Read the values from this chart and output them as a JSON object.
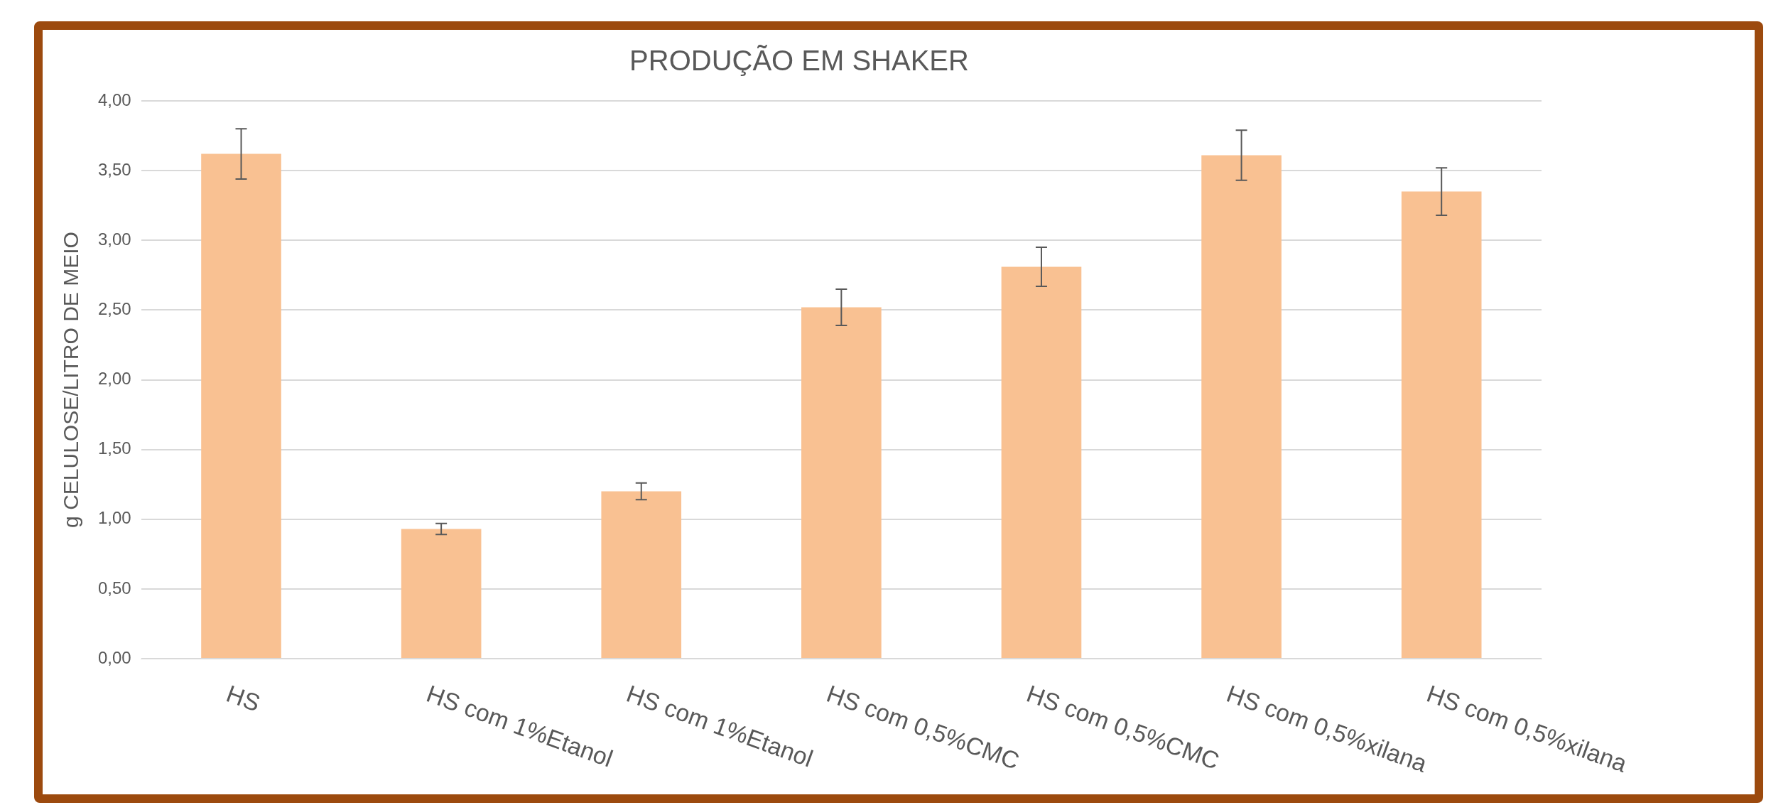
{
  "chart_data": {
    "type": "bar",
    "title": "PRODUÇÃO EM SHAKER",
    "ylabel": "g CELULOSE/LITRO DE MEIO",
    "categories": [
      "HS",
      "HS com 1%Etanol",
      "HS com 1%Etanol",
      "HS com 0,5%CMC",
      "HS com 0,5%CMC",
      "HS com 0,5%xilana",
      "HS com 0,5%xilana"
    ],
    "values": [
      3.62,
      0.93,
      1.2,
      2.52,
      2.81,
      3.61,
      3.35
    ],
    "errors": [
      0.18,
      0.04,
      0.06,
      0.13,
      0.14,
      0.18,
      0.17
    ],
    "color": "#f9c192",
    "ylim": [
      0,
      4
    ],
    "yticks": [
      {
        "value": 0,
        "label": "0,00"
      },
      {
        "value": 0.5,
        "label": "0,50"
      },
      {
        "value": 1,
        "label": "1,00"
      },
      {
        "value": 1.5,
        "label": "1,50"
      },
      {
        "value": 2,
        "label": "2,00"
      },
      {
        "value": 2.5,
        "label": "2,50"
      },
      {
        "value": 3,
        "label": "3,00"
      },
      {
        "value": 3.5,
        "label": "3,50"
      },
      {
        "value": 4,
        "label": "4,00"
      }
    ],
    "grid": "y"
  }
}
